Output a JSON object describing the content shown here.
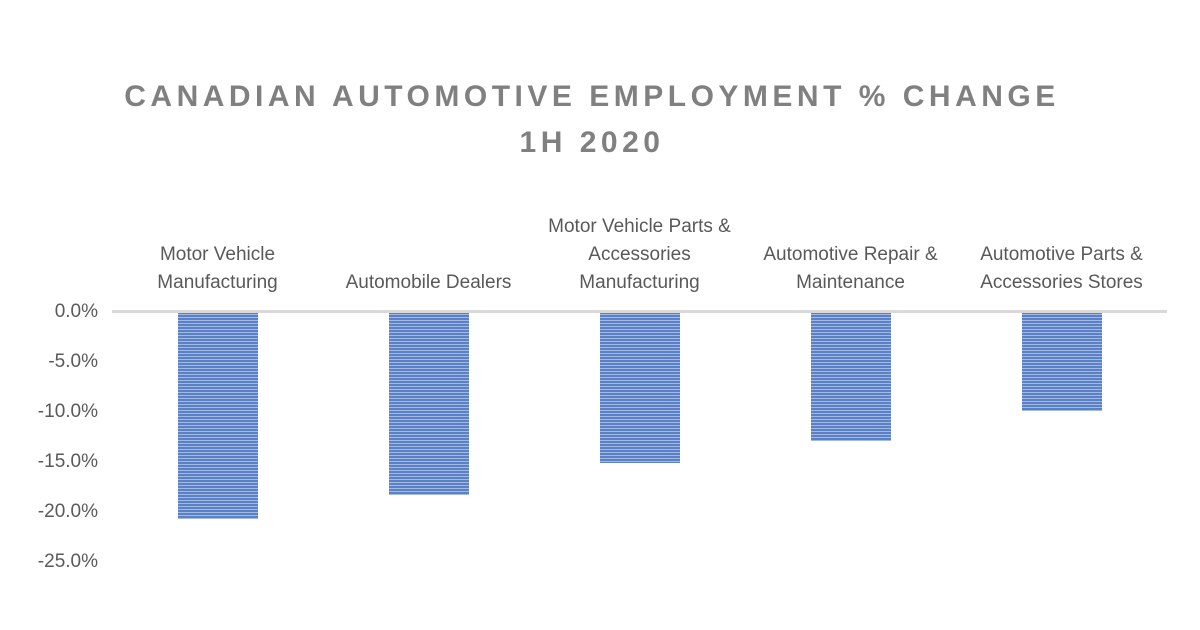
{
  "title": {
    "line1": "CANADIAN AUTOMOTIVE EMPLOYMENT % CHANGE",
    "line2": "1H 2020"
  },
  "chart_data": {
    "type": "bar",
    "orientation": "vertical",
    "title": "CANADIAN AUTOMOTIVE EMPLOYMENT % CHANGE 1H 2020",
    "xlabel": "",
    "ylabel": "",
    "categories": [
      "Motor Vehicle Manufacturing",
      "Automobile Dealers",
      "Motor Vehicle Parts & Accessories Manufacturing",
      "Automotive Repair & Maintenance",
      "Automotive Parts & Accessories Stores"
    ],
    "values": [
      -20.7,
      -18.3,
      -15.1,
      -12.9,
      -9.9
    ],
    "unit": "%",
    "ylim": [
      -25,
      0
    ],
    "y_ticks": [
      "0.0%",
      "-5.0%",
      "-10.0%",
      "-15.0%",
      "-20.0%",
      "-25.0%"
    ],
    "y_tick_values": [
      0,
      -5,
      -10,
      -15,
      -20,
      -25
    ],
    "grid": false,
    "legend": false,
    "colors": {
      "bar_stripe_dark": "#5b80c6",
      "bar_stripe_light": "#a3bbe2",
      "axis_line": "#d9d9d9",
      "tick_label": "#595959",
      "category_label": "#595959",
      "title": "#808080",
      "background": "#ffffff"
    }
  }
}
